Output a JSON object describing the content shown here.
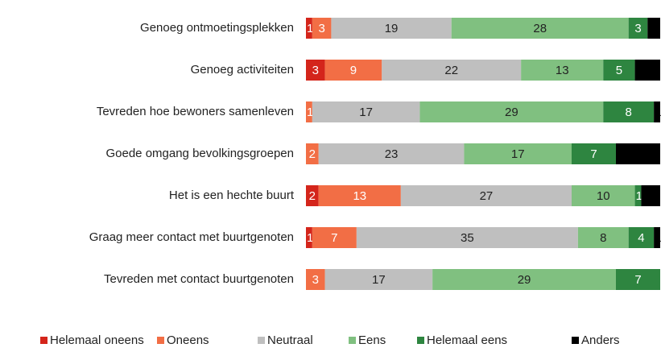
{
  "chart_data": {
    "type": "stacked_barh",
    "categories": [
      "Genoeg ontmoetingsplekken",
      "Genoeg activiteiten",
      "Tevreden hoe bewoners samenleven",
      "Goede omgang bevolkingsgroepen",
      "Het is een hechte buurt",
      "Graag meer contact met buurtgenoten",
      "Tevreden met contact buurtgenoten"
    ],
    "series": [
      {
        "name": "Helemaal oneens",
        "color": "#d4251b",
        "label_color": "#ffffff",
        "values": [
          1,
          3,
          null,
          0,
          2,
          1,
          0
        ]
      },
      {
        "name": "Oneens",
        "color": "#f26e45",
        "label_color": "#ffffff",
        "values": [
          3,
          9,
          1,
          2,
          13,
          7,
          3
        ]
      },
      {
        "name": "Neutraal",
        "color": "#bfbfbf",
        "label_color": "#222222",
        "values": [
          19,
          22,
          17,
          23,
          27,
          35,
          17
        ]
      },
      {
        "name": "Eens",
        "color": "#80c080",
        "label_color": "#222222",
        "values": [
          28,
          13,
          29,
          17,
          10,
          8,
          29
        ]
      },
      {
        "name": "Helemaal eens",
        "color": "#2e8540",
        "label_color": "#ffffff",
        "values": [
          3,
          5,
          8,
          7,
          1,
          4,
          7
        ]
      },
      {
        "name": "Anders",
        "color": "#000000",
        "label_color": "#000000",
        "values": [
          2,
          4,
          1,
          7,
          3,
          1,
          null
        ]
      }
    ],
    "xlim": [
      0,
      56
    ],
    "legend": "bottom"
  }
}
